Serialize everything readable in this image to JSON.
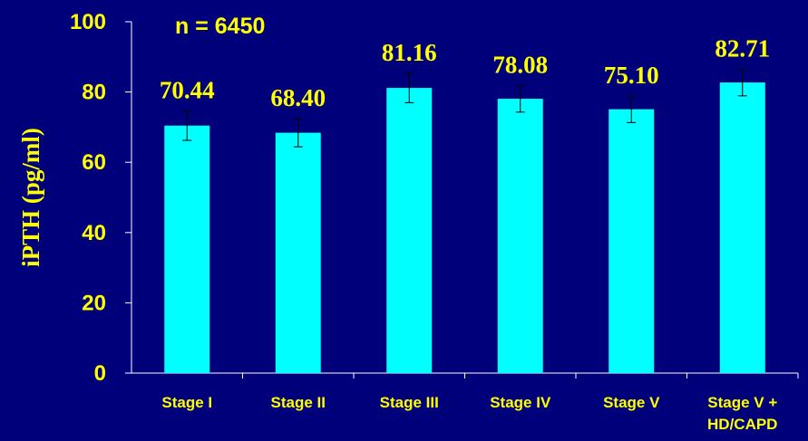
{
  "chart_data": {
    "type": "bar",
    "categories": [
      "Stage I",
      "Stage II",
      "Stage III",
      "Stage IV",
      "Stage V",
      "Stage V + HD/CAPD"
    ],
    "values": [
      70.44,
      68.4,
      81.16,
      78.08,
      75.1,
      82.71
    ],
    "value_labels": [
      "70.44",
      "68.40",
      "81.16",
      "78.08",
      "75.10",
      "82.71"
    ],
    "error_bars": [
      4.2,
      4.0,
      4.2,
      3.8,
      3.8,
      3.8
    ],
    "ylabel": "iPTH (pg/ml)",
    "xlabel": "",
    "ylim": [
      0,
      100
    ],
    "yticks": [
      0,
      20,
      40,
      60,
      80,
      100
    ],
    "annotation": "n = 6450",
    "grid": false,
    "colors": {
      "background": "#00007a",
      "bar": "#00ffff",
      "text": "#ffff00",
      "axis": "#ffffff",
      "error_bar": "#000000"
    }
  }
}
